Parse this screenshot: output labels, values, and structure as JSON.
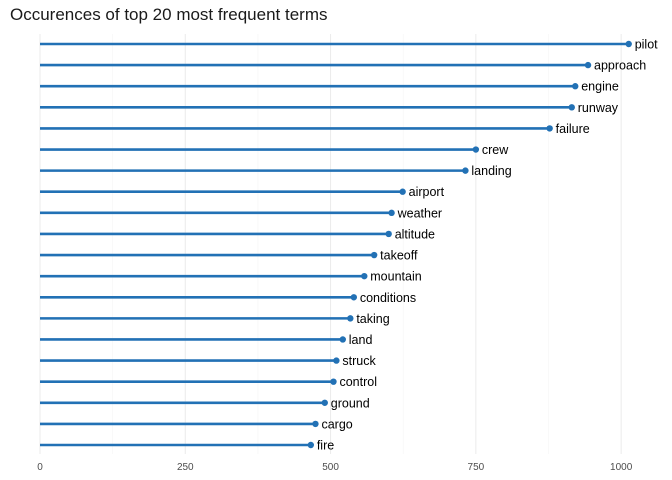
{
  "chart_data": {
    "type": "lollipop",
    "title": "Occurences of top 20 most frequent terms",
    "xlabel": "",
    "ylabel": "",
    "xlim": [
      0,
      1060
    ],
    "xticks": [
      0,
      250,
      500,
      750,
      1000
    ],
    "grid": true,
    "color": "#2271b5",
    "categories": [
      "pilot",
      "approach",
      "engine",
      "runway",
      "failure",
      "crew",
      "landing",
      "airport",
      "weather",
      "altitude",
      "takeoff",
      "mountain",
      "conditions",
      "taking",
      "land",
      "struck",
      "control",
      "ground",
      "cargo",
      "fire"
    ],
    "values": [
      1013,
      943,
      921,
      915,
      877,
      750,
      732,
      624,
      605,
      600,
      575,
      558,
      540,
      534,
      521,
      510,
      505,
      490,
      474,
      466
    ]
  }
}
